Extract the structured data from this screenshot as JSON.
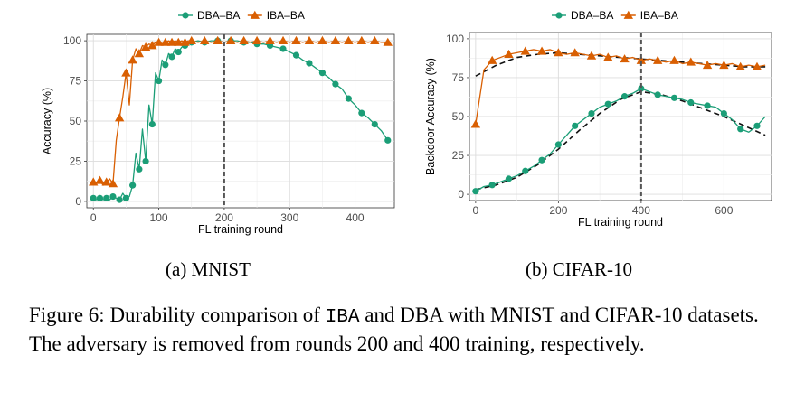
{
  "chart_data": [
    {
      "type": "line",
      "panel": "mnist",
      "title": "",
      "subcaption": "(a) MNIST",
      "xlabel": "FL training round",
      "ylabel": "Accuracy (%)",
      "xlim": [
        -10,
        460
      ],
      "ylim": [
        -4,
        104
      ],
      "xticks": [
        0,
        100,
        200,
        300,
        400
      ],
      "yticks": [
        0,
        25,
        50,
        75,
        100
      ],
      "removal_round": 200,
      "legend_position": "top",
      "series": [
        {
          "name": "DBA–BA",
          "color": "#1b9e77",
          "marker": "circle",
          "x": [
            0,
            5,
            10,
            15,
            20,
            25,
            30,
            35,
            40,
            45,
            50,
            55,
            60,
            65,
            70,
            75,
            80,
            85,
            90,
            95,
            100,
            105,
            110,
            115,
            120,
            125,
            130,
            135,
            140,
            145,
            150,
            160,
            170,
            180,
            190,
            200,
            210,
            220,
            230,
            240,
            250,
            260,
            270,
            280,
            290,
            300,
            310,
            320,
            330,
            340,
            350,
            360,
            370,
            380,
            390,
            400,
            410,
            420,
            430,
            440,
            450
          ],
          "y": [
            2,
            1,
            2,
            1,
            2,
            1,
            3,
            2,
            1,
            5,
            2,
            3,
            10,
            30,
            20,
            45,
            25,
            60,
            48,
            80,
            75,
            88,
            85,
            92,
            90,
            95,
            93,
            96,
            97,
            98,
            99,
            100,
            99,
            100,
            100,
            99,
            100,
            100,
            99,
            99,
            98,
            98,
            97,
            96,
            95,
            93,
            91,
            88,
            86,
            83,
            80,
            77,
            73,
            70,
            64,
            60,
            55,
            52,
            48,
            44,
            38
          ]
        },
        {
          "name": "IBA–BA",
          "color": "#d95f02",
          "marker": "triangle",
          "x": [
            0,
            5,
            10,
            15,
            20,
            25,
            30,
            35,
            40,
            45,
            50,
            55,
            60,
            65,
            70,
            75,
            80,
            85,
            90,
            95,
            100,
            105,
            110,
            115,
            120,
            125,
            130,
            135,
            140,
            145,
            150,
            160,
            170,
            180,
            190,
            200,
            210,
            220,
            230,
            240,
            250,
            260,
            270,
            280,
            290,
            300,
            310,
            320,
            330,
            340,
            350,
            360,
            370,
            380,
            390,
            400,
            410,
            420,
            430,
            440,
            450
          ],
          "y": [
            12,
            11,
            13,
            10,
            12,
            14,
            11,
            38,
            52,
            65,
            80,
            60,
            88,
            95,
            92,
            97,
            96,
            98,
            97,
            99,
            99,
            98,
            99,
            100,
            99,
            100,
            99,
            100,
            99,
            100,
            100,
            99,
            100,
            99,
            100,
            99,
            100,
            99,
            100,
            99,
            100,
            99,
            100,
            99,
            100,
            99,
            100,
            99,
            100,
            99,
            100,
            99,
            100,
            99,
            100,
            99,
            100,
            99,
            100,
            99,
            99
          ]
        }
      ]
    },
    {
      "type": "line",
      "panel": "cifar10",
      "title": "",
      "subcaption": "(b) CIFAR-10",
      "xlabel": "FL training round",
      "ylabel": "Backdoor Accuracy (%)",
      "xlim": [
        -15,
        715
      ],
      "ylim": [
        -4,
        104
      ],
      "xticks": [
        0,
        200,
        400,
        600
      ],
      "yticks": [
        0,
        25,
        50,
        75,
        100
      ],
      "removal_round": 400,
      "legend_position": "top",
      "series": [
        {
          "name": "DBA–BA",
          "color": "#1b9e77",
          "marker": "circle",
          "x": [
            0,
            20,
            40,
            60,
            80,
            100,
            120,
            140,
            160,
            180,
            200,
            220,
            240,
            260,
            280,
            300,
            320,
            340,
            360,
            380,
            400,
            420,
            440,
            460,
            480,
            500,
            520,
            540,
            560,
            580,
            600,
            620,
            640,
            660,
            680,
            700
          ],
          "y": [
            2,
            5,
            6,
            8,
            10,
            12,
            15,
            18,
            22,
            26,
            32,
            38,
            44,
            48,
            52,
            56,
            58,
            60,
            63,
            65,
            68,
            66,
            64,
            63,
            62,
            61,
            59,
            58,
            57,
            56,
            52,
            48,
            42,
            40,
            44,
            50
          ]
        },
        {
          "name": "IBA–BA",
          "color": "#d95f02",
          "marker": "triangle",
          "x": [
            0,
            20,
            40,
            60,
            80,
            100,
            120,
            140,
            160,
            180,
            200,
            220,
            240,
            260,
            280,
            300,
            320,
            340,
            360,
            380,
            400,
            420,
            440,
            460,
            480,
            500,
            520,
            540,
            560,
            580,
            600,
            620,
            640,
            660,
            680,
            700
          ],
          "y": [
            45,
            80,
            86,
            88,
            90,
            91,
            92,
            93,
            92,
            93,
            91,
            90,
            91,
            90,
            89,
            90,
            88,
            89,
            87,
            88,
            86,
            87,
            86,
            85,
            86,
            84,
            85,
            84,
            83,
            84,
            83,
            84,
            82,
            83,
            82,
            83
          ]
        }
      ],
      "trend_lines": [
        {
          "name": "DBA–BA trend",
          "x": [
            0,
            50,
            100,
            150,
            200,
            250,
            300,
            350,
            400,
            450,
            500,
            550,
            600,
            650,
            700
          ],
          "y": [
            3,
            6,
            11,
            19,
            29,
            41,
            52,
            61,
            66,
            64,
            60,
            55,
            50,
            44,
            38
          ]
        },
        {
          "name": "IBA–BA trend",
          "x": [
            0,
            50,
            100,
            150,
            200,
            250,
            300,
            350,
            400,
            450,
            500,
            550,
            600,
            650,
            700
          ],
          "y": [
            76,
            83,
            88,
            90,
            91,
            90,
            89,
            88,
            87,
            86,
            85,
            84,
            83,
            82,
            82
          ]
        }
      ]
    }
  ],
  "caption": {
    "prefix": "Figure 6: Durability comparison of ",
    "code_term": "IBA",
    "suffix": " and DBA with MNIST and CIFAR-10 datasets. The adversary is removed from rounds 200 and 400 training, respectively."
  }
}
